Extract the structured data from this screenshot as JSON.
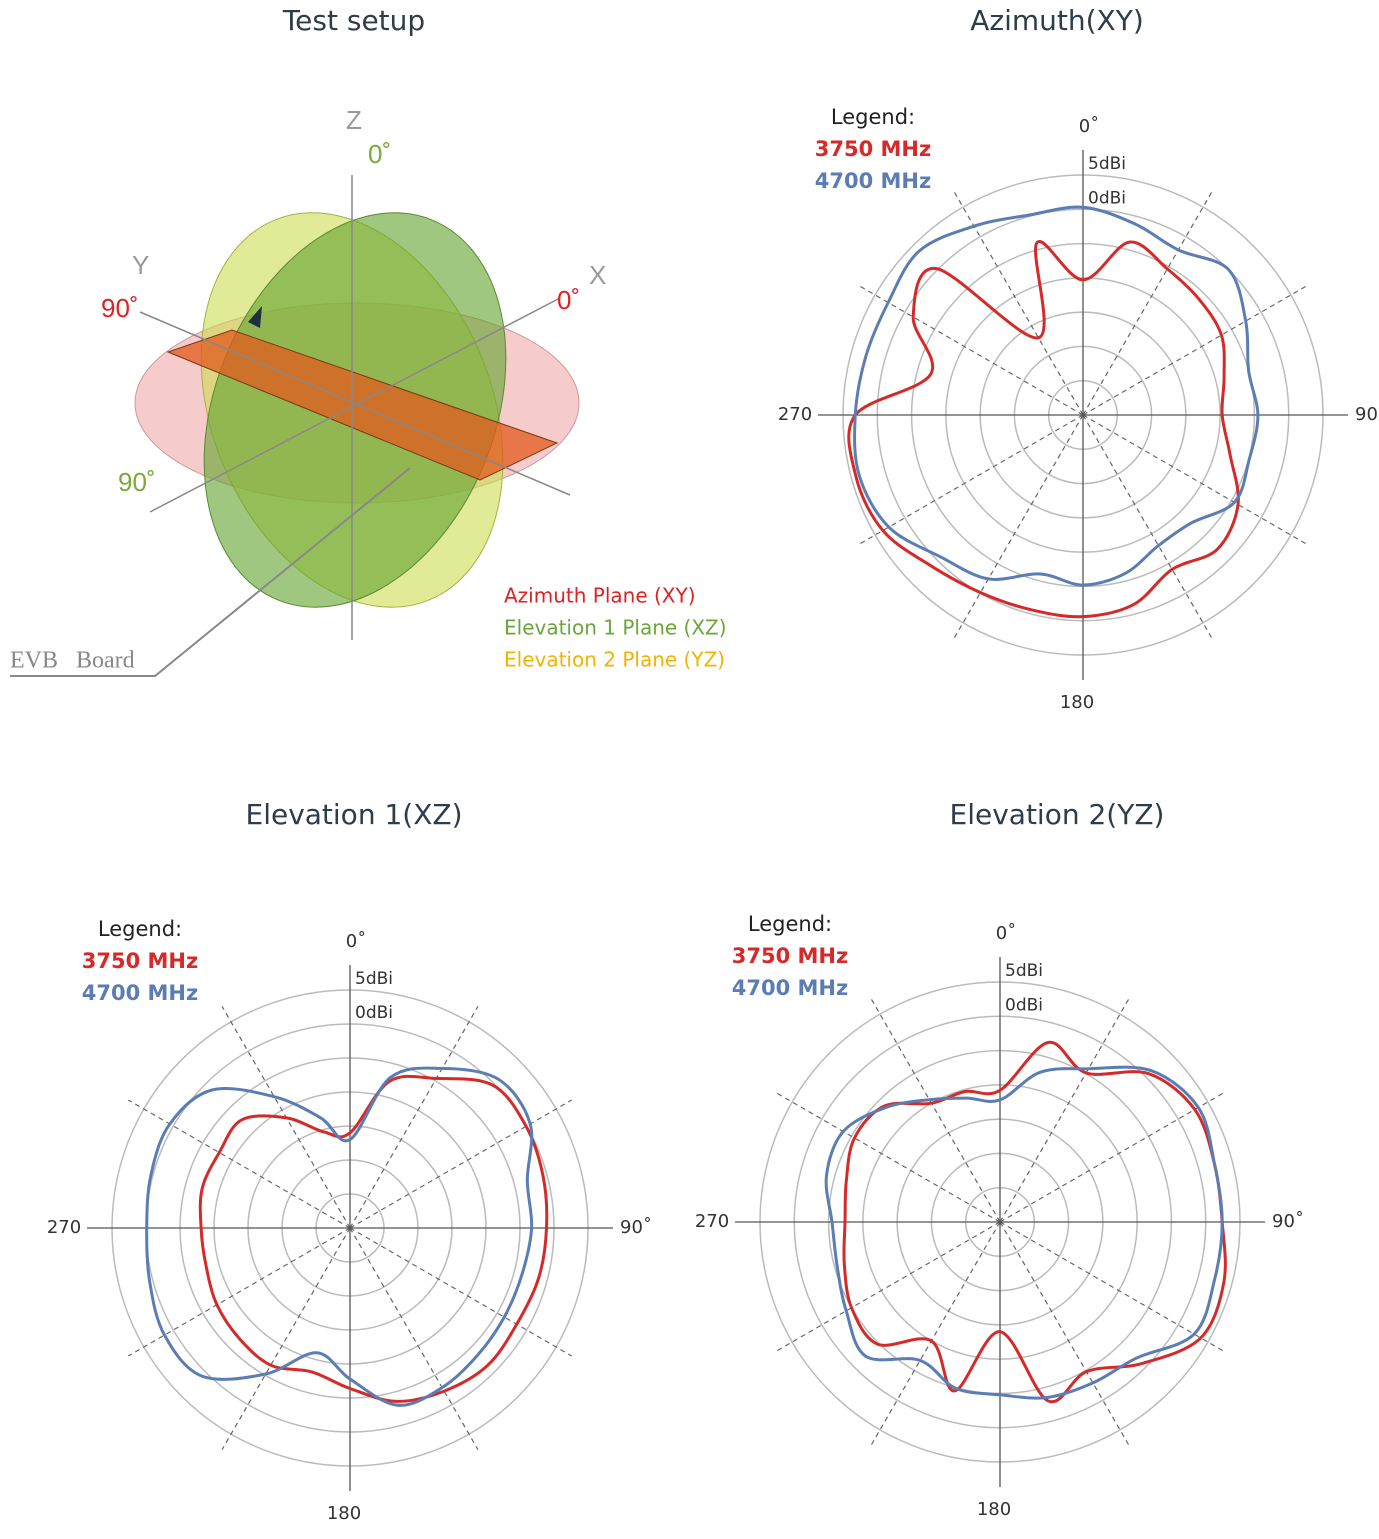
{
  "setup": {
    "title": "Test setup",
    "axis_z": "Z",
    "axis_y": "Y",
    "axis_x": "X",
    "elev1_zero": "0˚",
    "az_ninety": "90˚",
    "az_zero": "0˚",
    "elev1_ninety": "90˚",
    "planes": [
      "Azimuth Plane (XY)",
      "Elevation 1 Plane (XZ)",
      "Elevation 2 Plane (YZ)"
    ],
    "board_label": "EVB   Board"
  },
  "chart_data": [
    {
      "type": "polar",
      "title": "Azimuth(XY)",
      "legend_title": "Legend:",
      "theta": [
        0,
        15,
        30,
        45,
        60,
        75,
        90,
        105,
        120,
        135,
        150,
        165,
        180,
        195,
        210,
        225,
        240,
        255,
        270,
        285,
        300,
        315,
        330,
        345
      ],
      "series": [
        {
          "name": "3750 MHz",
          "color": "#d42a2a",
          "values": [
            -10.3,
            -3.9,
            -5.4,
            -6.1,
            -6.7,
            -8.7,
            -9.7,
            -7.8,
            -3.9,
            -2.3,
            -4,
            -1.4,
            -0.6,
            -0.6,
            -0.1,
            1.2,
            3.7,
            4.3,
            3.2,
            -7,
            -1.4,
            0.2,
            -17,
            -4
          ]
        },
        {
          "name": "4700 MHz",
          "color": "#5b7db3",
          "values": [
            0.3,
            -1.1,
            -2.2,
            0,
            -2.6,
            -5,
            -4.5,
            -4.9,
            -4.5,
            -7.7,
            -8,
            -6.1,
            -5.2,
            -6,
            -2.4,
            -0.7,
            2.7,
            3.8,
            3.2,
            2.8,
            2.8,
            3.8,
            1.8,
            0.2
          ]
        }
      ],
      "rlim": [
        -30,
        5
      ],
      "rticks": [
        {
          "value": 5,
          "label": "5dBi"
        },
        {
          "value": 0,
          "label": "0dBi"
        }
      ],
      "rgrid": [
        -25,
        -20,
        -15,
        -10,
        -5
      ],
      "thetaticks": [
        {
          "value": 0,
          "label": "0˚"
        },
        {
          "value": 90,
          "label": "90˚"
        },
        {
          "value": 180,
          "label": "180"
        },
        {
          "value": 270,
          "label": "270"
        }
      ],
      "thetagrid": [
        30,
        60,
        120,
        150,
        210,
        240,
        300,
        330
      ]
    },
    {
      "type": "polar",
      "title": "Elevation 1(XZ)",
      "legend_title": "Legend:",
      "theta": [
        0,
        15,
        30,
        45,
        60,
        75,
        90,
        105,
        120,
        135,
        150,
        165,
        180,
        195,
        210,
        225,
        240,
        255,
        270,
        285,
        300,
        315,
        330,
        345
      ],
      "series": [
        {
          "name": "3750 MHz",
          "color": "#d42a2a",
          "values": [
            -16,
            -7.7,
            -4.6,
            -0.3,
            -0.1,
            -0.6,
            -1.1,
            -1.3,
            -1.7,
            -1.4,
            -2.3,
            -3.6,
            -6.4,
            -8.1,
            -6.7,
            -7,
            -7.4,
            -8.1,
            -8.1,
            -7.5,
            -7.8,
            -7.5,
            -11.3,
            -15.4
          ]
        },
        {
          "name": "4700 MHz",
          "color": "#5b7db3",
          "values": [
            -17,
            -7.1,
            -2.9,
            0.9,
            0.6,
            -3,
            -3.3,
            -3.8,
            -3.8,
            -3.5,
            -2.9,
            -3,
            -7.8,
            -11,
            -5.2,
            0.8,
            1.5,
            0.5,
            -0.1,
            0.3,
            0.6,
            -1.3,
            -7.7,
            -13.2
          ]
        }
      ],
      "rlim": [
        -30,
        5
      ],
      "rticks": [
        {
          "value": 5,
          "label": "5dBi"
        },
        {
          "value": 0,
          "label": "0dBi"
        }
      ],
      "rgrid": [
        -25,
        -20,
        -15,
        -10,
        -5
      ],
      "thetaticks": [
        {
          "value": 0,
          "label": "0˚"
        },
        {
          "value": 90,
          "label": "90˚"
        },
        {
          "value": 180,
          "label": "180"
        },
        {
          "value": 270,
          "label": "270"
        }
      ],
      "thetagrid": [
        30,
        60,
        120,
        150,
        210,
        240,
        300,
        330
      ]
    },
    {
      "type": "polar",
      "title": "Elevation 2(YZ)",
      "legend_title": "Legend:",
      "theta": [
        0,
        15,
        30,
        45,
        60,
        75,
        90,
        105,
        120,
        135,
        150,
        165,
        180,
        195,
        210,
        225,
        240,
        255,
        270,
        285,
        300,
        315,
        330,
        345
      ],
      "series": [
        {
          "name": "3750 MHz",
          "color": "#d42a2a",
          "values": [
            -10.8,
            -2.9,
            -4.9,
            0.6,
            2.8,
            2.4,
            2.4,
            3.8,
            3.8,
            -0.8,
            -4.8,
            -3,
            -14,
            -4.5,
            -10,
            -4.8,
            -5,
            -6.5,
            -7.4,
            -6.8,
            -5.5,
            -6.1,
            -10,
            -10.3
          ]
        },
        {
          "name": "4700 MHz",
          "color": "#5b7db3",
          "values": [
            -12.2,
            -7.4,
            -4.2,
            1.2,
            3.4,
            2.4,
            2.4,
            2.4,
            2.7,
            -1.9,
            -2.9,
            -3.5,
            -4.8,
            -4.9,
            -6.7,
            -2.3,
            -4.1,
            -5.4,
            -5.5,
            -3.8,
            -3.6,
            -6.4,
            -9.4,
            -11.3
          ]
        }
      ],
      "rlim": [
        -30,
        5
      ],
      "rticks": [
        {
          "value": 5,
          "label": "5dBi"
        },
        {
          "value": 0,
          "label": "0dBi"
        }
      ],
      "rgrid": [
        -25,
        -20,
        -15,
        -10,
        -5
      ],
      "thetaticks": [
        {
          "value": 0,
          "label": "0˚"
        },
        {
          "value": 90,
          "label": "90˚"
        },
        {
          "value": 180,
          "label": "180"
        },
        {
          "value": 270,
          "label": "270"
        }
      ],
      "thetagrid": [
        30,
        60,
        120,
        150,
        210,
        240,
        300,
        330
      ]
    }
  ]
}
